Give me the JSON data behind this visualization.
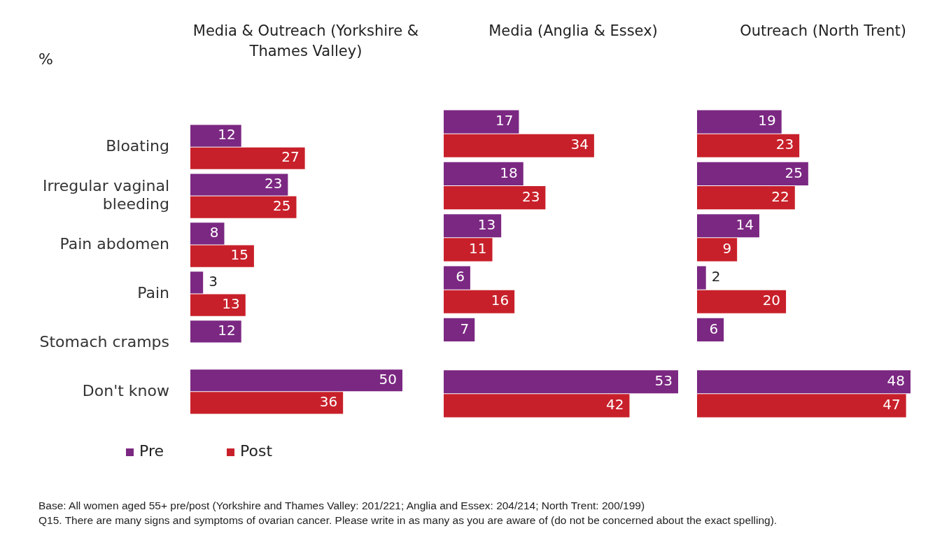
{
  "chart_data": [
    {
      "type": "bar",
      "orientation": "horizontal",
      "title": "Media & Outreach (Yorkshire & Thames Valley)",
      "categories": [
        "Bloating",
        "Irregular vaginal bleeding",
        "Pain abdomen",
        "Pain",
        "Stomach cramps",
        "Don't know"
      ],
      "series": [
        {
          "name": "Pre",
          "color": "#7b2882",
          "values": [
            12,
            23,
            8,
            3,
            12,
            50
          ]
        },
        {
          "name": "Post",
          "color": "#c8202a",
          "values": [
            27,
            25,
            15,
            13,
            null,
            36
          ]
        }
      ],
      "data_labels": true,
      "legend": "bottom",
      "tick_labels": "y",
      "annotations": [
        "%",
        "Base: All women aged 55+ pre/post (Yorkshire and Thames Valley: 201/221; Anglia and Essex: 204/214; North Trent: 200/199)",
        "Q15. There are many signs and symptoms of ovarian cancer. Please write in as many as you are aware of (do not be concerned about the exact spelling)."
      ]
    },
    {
      "type": "bar",
      "orientation": "horizontal",
      "title": "Media (Anglia & Essex)",
      "categories": [
        null,
        null,
        null,
        null,
        null,
        null
      ],
      "series": [
        {
          "color": "#7b2882",
          "values": [
            17,
            18,
            13,
            6,
            7,
            53
          ]
        },
        {
          "color": "#c8202a",
          "values": [
            34,
            23,
            11,
            16,
            null,
            42
          ]
        }
      ],
      "data_labels": true,
      "tick_labels": false
    },
    {
      "type": "bar",
      "orientation": "horizontal",
      "title": "Outreach (North Trent)",
      "categories": [
        null,
        null,
        null,
        null,
        null,
        null
      ],
      "series": [
        {
          "color": "#7b2882",
          "values": [
            19,
            25,
            14,
            2,
            6,
            48
          ]
        },
        {
          "color": "#c8202a",
          "values": [
            23,
            22,
            9,
            20,
            null,
            47
          ]
        }
      ],
      "data_labels": true,
      "tick_labels": false
    }
  ]
}
